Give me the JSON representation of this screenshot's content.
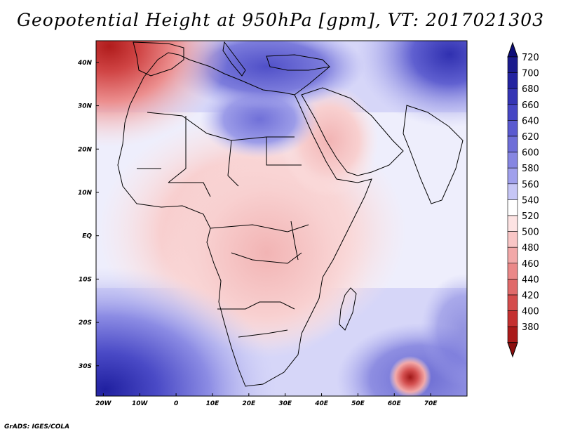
{
  "title": "Geopotential Height at 950hPa [gpm], VT: 2017021303",
  "credit": "GrADS: IGES/COLA",
  "map": {
    "variable": "Geopotential Height at 950hPa",
    "units": "gpm",
    "valid_time": "2017021303",
    "lat_labels": [
      {
        "lat": 40,
        "text": "40N"
      },
      {
        "lat": 30,
        "text": "30N"
      },
      {
        "lat": 20,
        "text": "20N"
      },
      {
        "lat": 10,
        "text": "10N"
      },
      {
        "lat": 0,
        "text": "EQ"
      },
      {
        "lat": -10,
        "text": "10S"
      },
      {
        "lat": -20,
        "text": "20S"
      },
      {
        "lat": -30,
        "text": "30S"
      }
    ],
    "lon_labels": [
      {
        "lon": -20,
        "text": "20W"
      },
      {
        "lon": -10,
        "text": "10W"
      },
      {
        "lon": 0,
        "text": "0"
      },
      {
        "lon": 10,
        "text": "10E"
      },
      {
        "lon": 20,
        "text": "20E"
      },
      {
        "lon": 30,
        "text": "30E"
      },
      {
        "lon": 40,
        "text": "40E"
      },
      {
        "lon": 50,
        "text": "50E"
      },
      {
        "lon": 60,
        "text": "60E"
      },
      {
        "lon": 70,
        "text": "70E"
      }
    ],
    "lon_range": [
      -22,
      80
    ],
    "lat_range": [
      -37,
      45
    ]
  },
  "colorbar": {
    "levels": [
      {
        "value": "720",
        "color": "#1a1a8c"
      },
      {
        "value": "700",
        "color": "#2323a0"
      },
      {
        "value": "680",
        "color": "#3434b4"
      },
      {
        "value": "660",
        "color": "#4646c4"
      },
      {
        "value": "640",
        "color": "#5a5ad0"
      },
      {
        "value": "620",
        "color": "#6e6ed8"
      },
      {
        "value": "600",
        "color": "#8686e2"
      },
      {
        "value": "580",
        "color": "#a0a0ec"
      },
      {
        "value": "560",
        "color": "#c6c6f6"
      },
      {
        "value": "540",
        "color": "#ffffff"
      },
      {
        "value": "520",
        "color": "#fde3e3"
      },
      {
        "value": "500",
        "color": "#f9c6c6"
      },
      {
        "value": "480",
        "color": "#f2a8a8"
      },
      {
        "value": "460",
        "color": "#ea8888"
      },
      {
        "value": "440",
        "color": "#e06a6a"
      },
      {
        "value": "420",
        "color": "#d44c4c"
      },
      {
        "value": "400",
        "color": "#c43030"
      },
      {
        "value": "380",
        "color": "#aa1a1a"
      }
    ],
    "top_color": "#0d0d78",
    "bottom_color": "#8c0f0f"
  }
}
